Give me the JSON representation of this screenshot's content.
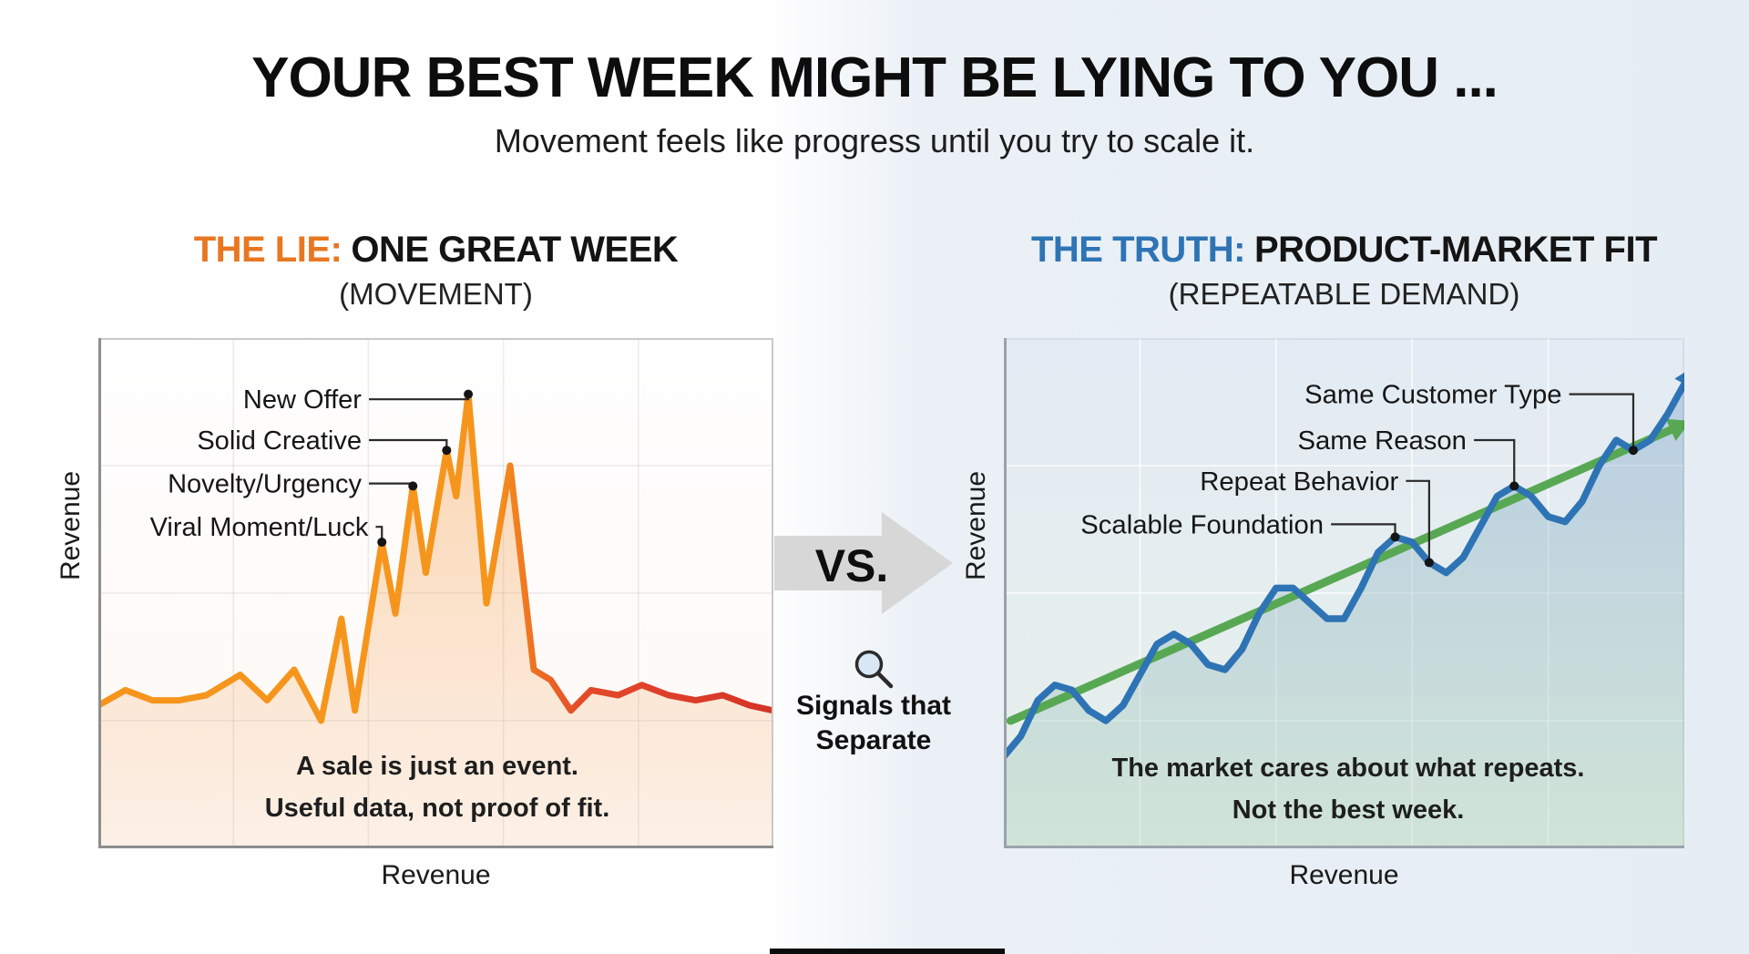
{
  "page": {
    "title": "YOUR BEST WEEK MIGHT BE LYING TO YOU ...",
    "subtitle": "Movement feels like progress until you try to scale it."
  },
  "left_panel": {
    "title_prefix": "THE LIE:",
    "title_main": "ONE GREAT WEEK",
    "subtitle": "(MOVEMENT)",
    "accent_color": "#e87722",
    "y_axis_label": "Revenue",
    "x_axis_label": "Revenue",
    "caption_line1": "A sale is just an event.",
    "caption_line2": "Useful data, not proof of fit."
  },
  "center": {
    "versus_label": "VS.",
    "signals_line1": "Signals that",
    "signals_line2": "Separate"
  },
  "right_panel": {
    "title_prefix": "THE TRUTH:",
    "title_main": "PRODUCT-MARKET FIT",
    "subtitle": "(REPEATABLE DEMAND)",
    "accent_color": "#2e74b5",
    "y_axis_label": "Revenue",
    "x_axis_label": "Revenue",
    "caption_line1": "The market cares about what repeats.",
    "caption_line2": "Not the best week."
  },
  "chart_data": [
    {
      "id": "lie_chart",
      "type": "line",
      "title": "THE LIE: ONE GREAT WEEK (MOVEMENT)",
      "xlabel": "Revenue",
      "ylabel": "Revenue",
      "xlim": [
        0,
        100
      ],
      "ylim": [
        0,
        100
      ],
      "grid": true,
      "bg": [
        "#fefefe",
        "#fdf8f5"
      ],
      "border_color": "#c9c9c9",
      "axis_color": "#8d8d8d",
      "grid_color": "rgba(0,0,0,0.07)",
      "series": [
        {
          "name": "one-great-week-revenue",
          "width": 7,
          "stroke_stops": [
            {
              "offset": 0,
              "color": "#f6951c"
            },
            {
              "offset": 0.58,
              "color": "#f6951c"
            },
            {
              "offset": 0.72,
              "color": "#e4492a"
            },
            {
              "offset": 1,
              "color": "#d43328"
            }
          ],
          "fill_top": "rgba(244,148,50,0.42)",
          "fill_bottom": "rgba(243,148,60,0.08)",
          "points": [
            [
              0,
              28
            ],
            [
              4,
              31
            ],
            [
              8,
              29
            ],
            [
              12,
              29
            ],
            [
              16,
              30
            ],
            [
              21,
              34
            ],
            [
              25,
              29
            ],
            [
              29,
              35
            ],
            [
              33,
              25
            ],
            [
              36,
              45
            ],
            [
              38,
              27
            ],
            [
              42,
              60
            ],
            [
              44,
              46
            ],
            [
              46.6,
              71
            ],
            [
              48.5,
              54
            ],
            [
              51.6,
              78
            ],
            [
              53,
              69
            ],
            [
              54.8,
              89
            ],
            [
              57.5,
              48
            ],
            [
              61,
              75
            ],
            [
              64.5,
              35
            ],
            [
              67,
              33
            ],
            [
              70,
              27
            ],
            [
              73,
              31
            ],
            [
              77,
              30
            ],
            [
              80.5,
              32
            ],
            [
              84.5,
              30
            ],
            [
              88.5,
              29
            ],
            [
              92.5,
              30
            ],
            [
              96.5,
              28
            ],
            [
              100,
              27
            ]
          ]
        }
      ],
      "annotations": [
        {
          "label": "New Offer",
          "label_pos": [
            39,
            88
          ],
          "point": [
            54.8,
            89
          ]
        },
        {
          "label": "Solid Creative",
          "label_pos": [
            39,
            80
          ],
          "point": [
            51.6,
            78
          ]
        },
        {
          "label": "Novelty/Urgency",
          "label_pos": [
            39,
            71.5
          ],
          "point": [
            46.6,
            71
          ]
        },
        {
          "label": "Viral Moment/Luck",
          "label_pos": [
            40,
            63
          ],
          "point": [
            42,
            60
          ]
        }
      ]
    },
    {
      "id": "truth_chart",
      "type": "line",
      "title": "THE TRUTH: PRODUCT-MARKET FIT (REPEATABLE DEMAND)",
      "xlabel": "Revenue",
      "ylabel": "Revenue",
      "xlim": [
        0,
        100
      ],
      "ylim": [
        0,
        100
      ],
      "grid": true,
      "bg": [
        "#e3ebf4",
        "#e7f0ea"
      ],
      "border_color": "rgba(0,0,0,0.06)",
      "axis_color": "#9aa2ab",
      "grid_color": "rgba(255,255,255,0.8)",
      "trend": {
        "name": "trend-arrow",
        "start": [
          1,
          25
        ],
        "end": [
          98,
          82
        ],
        "color": "#58a853",
        "width": 9,
        "arrow_size": 24
      },
      "series": [
        {
          "name": "repeatable-demand-revenue",
          "color": "#2e74b5",
          "width": 7.5,
          "arrowhead": true,
          "arrow_size": 22,
          "fill_top": "rgba(79,129,189,0.30)",
          "fill_bottom": "rgba(140,190,160,0.25)",
          "points": [
            [
              0,
              18
            ],
            [
              2.5,
              22
            ],
            [
              5,
              29
            ],
            [
              7.5,
              32
            ],
            [
              10,
              31
            ],
            [
              12.5,
              27
            ],
            [
              15,
              25
            ],
            [
              17.5,
              28
            ],
            [
              20,
              34
            ],
            [
              22.5,
              40
            ],
            [
              25,
              42
            ],
            [
              27.5,
              40
            ],
            [
              30,
              36
            ],
            [
              32.5,
              35
            ],
            [
              35,
              39
            ],
            [
              37.5,
              46
            ],
            [
              40,
              51
            ],
            [
              42.5,
              51
            ],
            [
              45,
              48
            ],
            [
              47.5,
              45
            ],
            [
              50,
              45
            ],
            [
              52.5,
              51
            ],
            [
              55,
              58
            ],
            [
              57.5,
              61
            ],
            [
              60,
              60
            ],
            [
              62.5,
              56
            ],
            [
              65,
              54
            ],
            [
              67.5,
              57
            ],
            [
              70,
              63
            ],
            [
              72.5,
              69
            ],
            [
              75,
              71
            ],
            [
              77.5,
              69
            ],
            [
              80,
              65
            ],
            [
              82.5,
              64
            ],
            [
              85,
              68
            ],
            [
              87.5,
              75
            ],
            [
              90,
              80
            ],
            [
              92.5,
              78
            ],
            [
              95,
              80
            ],
            [
              97.5,
              85
            ],
            [
              100,
              91
            ]
          ]
        }
      ],
      "annotations": [
        {
          "label": "Same Customer Type",
          "label_pos": [
            82,
            89
          ],
          "point": [
            92.5,
            78
          ]
        },
        {
          "label": "Same Reason",
          "label_pos": [
            68,
            80
          ],
          "point": [
            75,
            71
          ]
        },
        {
          "label": "Repeat Behavior",
          "label_pos": [
            58,
            72
          ],
          "point": [
            62.5,
            56
          ]
        },
        {
          "label": "Scalable Foundation",
          "label_pos": [
            47,
            63.5
          ],
          "point": [
            57.5,
            61
          ]
        }
      ]
    }
  ]
}
